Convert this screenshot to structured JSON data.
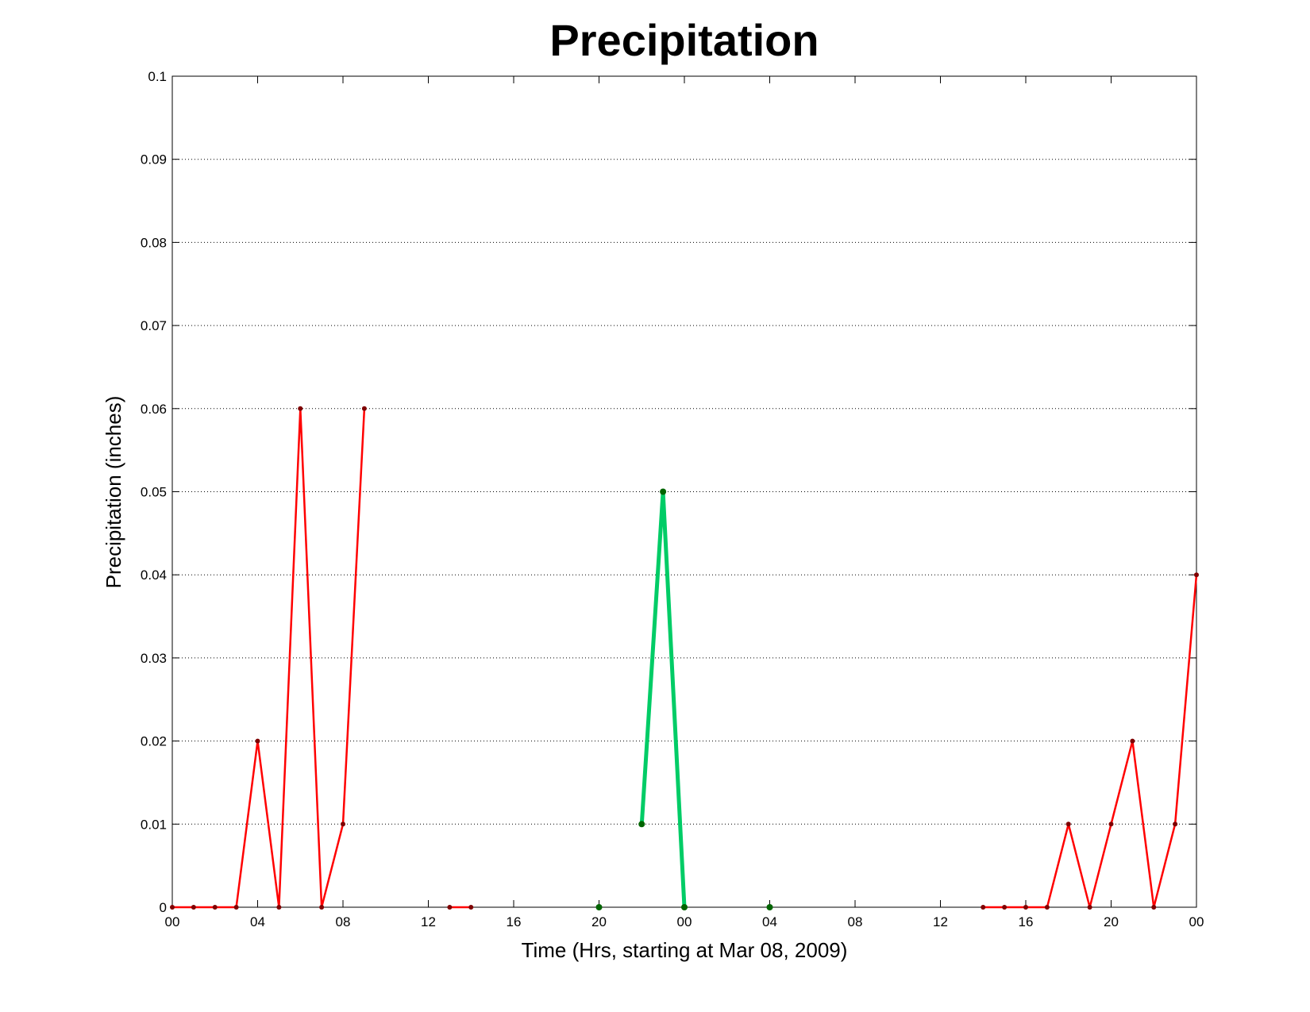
{
  "chart_data": {
    "type": "line",
    "title": "Precipitation",
    "xlabel": "Time (Hrs, starting at Mar 08, 2009)",
    "ylabel": "Precipitation (inches)",
    "xlim": [
      0,
      48
    ],
    "ylim": [
      0,
      0.1
    ],
    "grid": true,
    "x_ticks": [
      {
        "x": 0,
        "label": "00"
      },
      {
        "x": 4,
        "label": "04"
      },
      {
        "x": 8,
        "label": "08"
      },
      {
        "x": 12,
        "label": "12"
      },
      {
        "x": 16,
        "label": "16"
      },
      {
        "x": 20,
        "label": "20"
      },
      {
        "x": 24,
        "label": "00"
      },
      {
        "x": 28,
        "label": "04"
      },
      {
        "x": 32,
        "label": "08"
      },
      {
        "x": 36,
        "label": "12"
      },
      {
        "x": 40,
        "label": "16"
      },
      {
        "x": 44,
        "label": "20"
      },
      {
        "x": 48,
        "label": "00"
      }
    ],
    "y_ticks": [
      {
        "y": 0,
        "label": "0"
      },
      {
        "y": 0.01,
        "label": "0.01"
      },
      {
        "y": 0.02,
        "label": "0.02"
      },
      {
        "y": 0.03,
        "label": "0.03"
      },
      {
        "y": 0.04,
        "label": "0.04"
      },
      {
        "y": 0.05,
        "label": "0.05"
      },
      {
        "y": 0.06,
        "label": "0.06"
      },
      {
        "y": 0.07,
        "label": "0.07"
      },
      {
        "y": 0.08,
        "label": "0.08"
      },
      {
        "y": 0.09,
        "label": "0.09"
      },
      {
        "y": 0.1,
        "label": "0.1"
      }
    ],
    "series": [
      {
        "color": "#ff0000",
        "marker_color": "#7f0000",
        "segments": [
          [
            [
              0,
              0
            ],
            [
              1,
              0
            ],
            [
              2,
              0
            ],
            [
              3,
              0
            ],
            [
              4,
              0.02
            ],
            [
              5,
              0
            ],
            [
              6,
              0.06
            ],
            [
              7,
              0
            ],
            [
              8,
              0.01
            ],
            [
              9,
              0.06
            ]
          ],
          [
            [
              13,
              0
            ],
            [
              14,
              0
            ]
          ],
          [
            [
              38,
              0
            ],
            [
              39,
              0
            ],
            [
              40,
              0
            ],
            [
              41,
              0
            ],
            [
              42,
              0.01
            ],
            [
              43,
              0
            ],
            [
              44,
              0.01
            ],
            [
              45,
              0.02
            ],
            [
              46,
              0
            ],
            [
              47,
              0.01
            ],
            [
              48,
              0.04
            ]
          ]
        ]
      },
      {
        "color": "#00cc66",
        "marker_color": "#006400",
        "segments": [
          [
            [
              20,
              0
            ]
          ],
          [
            [
              22,
              0.01
            ],
            [
              23,
              0.05
            ],
            [
              24,
              0
            ]
          ],
          [
            [
              28,
              0
            ]
          ]
        ]
      }
    ]
  }
}
